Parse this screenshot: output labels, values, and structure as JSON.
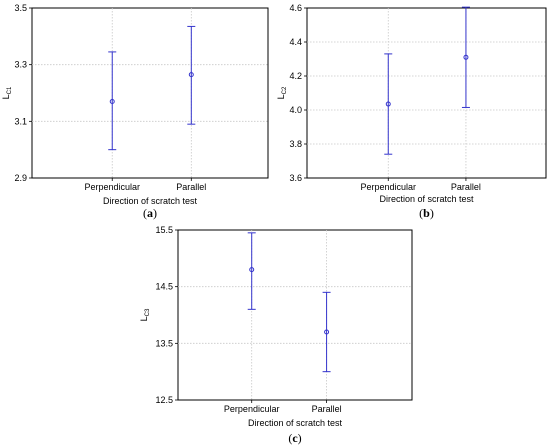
{
  "chart_data": [
    {
      "type": "errorbar",
      "caption_open": "(",
      "caption_letter": "a",
      "caption_close": ")",
      "xlabel": "Direction of scratch test",
      "ylabel_main": "L",
      "ylabel_sub": "C1",
      "categories": [
        "Perpendicular",
        "Parallel"
      ],
      "means": [
        3.17,
        3.265
      ],
      "lower": [
        3.0,
        3.09
      ],
      "upper": [
        3.345,
        3.435
      ],
      "ylim": [
        2.9,
        3.5
      ],
      "yticks": [
        "2.9",
        "3.1",
        "3.3",
        "3.5"
      ],
      "grid": true,
      "color": "#3333cc"
    },
    {
      "type": "errorbar",
      "caption_open": "(",
      "caption_letter": "b",
      "caption_close": ")",
      "xlabel": "Direction of scratch test",
      "ylabel_main": "L",
      "ylabel_sub": "C2",
      "categories": [
        "Perpendicular",
        "Parallel"
      ],
      "means": [
        4.035,
        4.31
      ],
      "lower": [
        3.74,
        4.015
      ],
      "upper": [
        4.33,
        4.605
      ],
      "ylim": [
        3.6,
        4.6
      ],
      "yticks": [
        "3.6",
        "3.8",
        "4.0",
        "4.2",
        "4.4",
        "4.6"
      ],
      "grid": true,
      "color": "#3333cc"
    },
    {
      "type": "errorbar",
      "caption_open": "(",
      "caption_letter": "c",
      "caption_close": ")",
      "xlabel": "Direction of scratch test",
      "ylabel_main": "L",
      "ylabel_sub": "C3",
      "categories": [
        "Perpendicular",
        "Parallel"
      ],
      "means": [
        14.8,
        13.7
      ],
      "lower": [
        14.1,
        13.0
      ],
      "upper": [
        15.45,
        14.4
      ],
      "ylim": [
        12.5,
        15.5
      ],
      "yticks": [
        "12.5",
        "13.5",
        "14.5",
        "15.5"
      ],
      "grid": true,
      "color": "#3333cc"
    }
  ]
}
